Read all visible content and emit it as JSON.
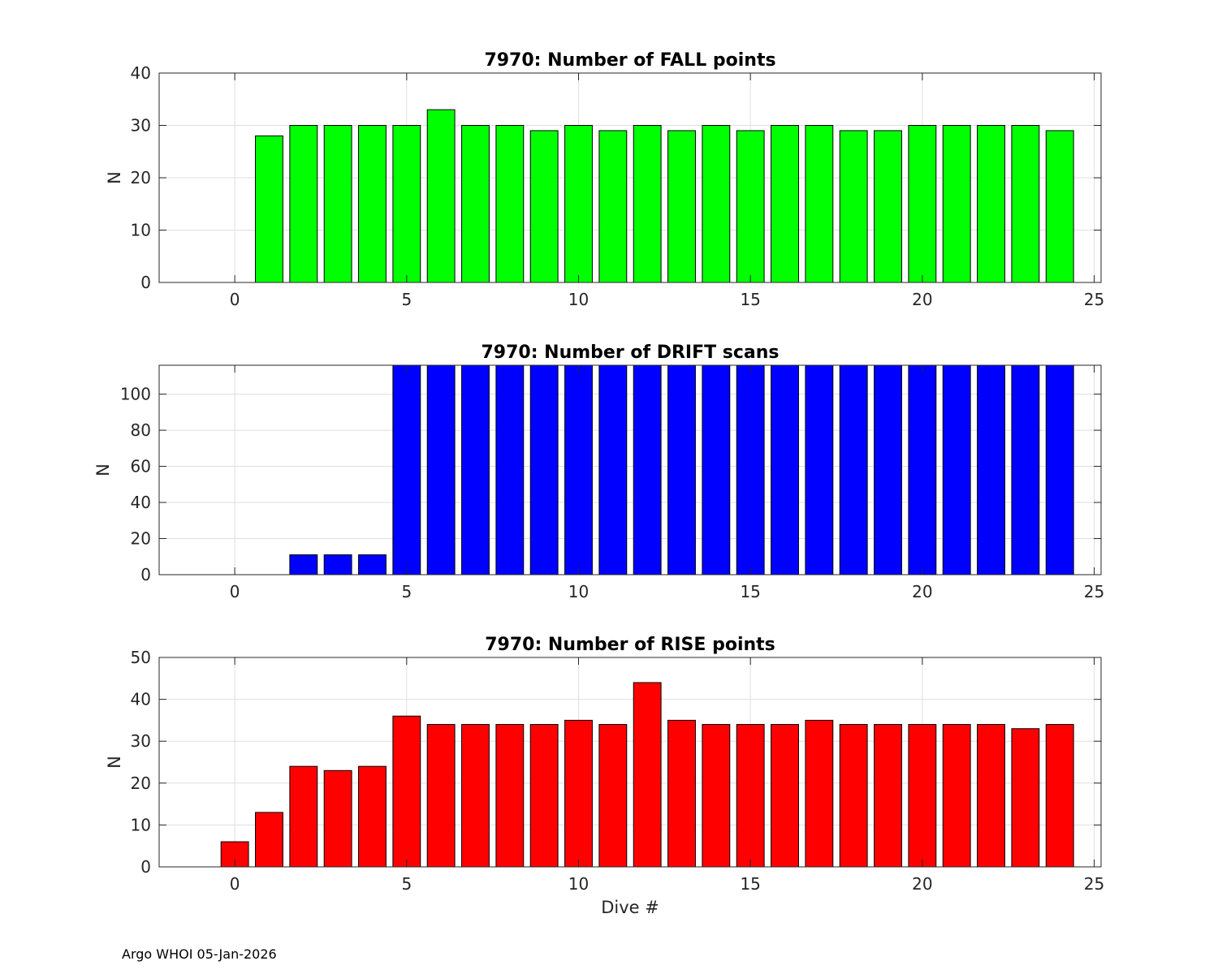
{
  "footer": "Argo WHOI 05-Jan-2026",
  "chart_data": [
    {
      "type": "bar",
      "title": "7970: Number of FALL points",
      "xlabel": "",
      "ylabel": "N",
      "color": "#00ff00",
      "xlim": [
        -2.2,
        25.2
      ],
      "ylim": [
        0,
        40
      ],
      "xticks": [
        0,
        5,
        10,
        15,
        20,
        25
      ],
      "yticks": [
        0,
        10,
        20,
        30,
        40
      ],
      "grid": true,
      "x": [
        1,
        2,
        3,
        4,
        5,
        6,
        7,
        8,
        9,
        10,
        11,
        12,
        13,
        14,
        15,
        16,
        17,
        18,
        19,
        20,
        21,
        22,
        23,
        24
      ],
      "values": [
        28,
        30,
        30,
        30,
        30,
        33,
        30,
        30,
        29,
        30,
        29,
        30,
        29,
        30,
        29,
        30,
        30,
        29,
        29,
        30,
        30,
        30,
        30,
        29
      ]
    },
    {
      "type": "bar",
      "title": "7970: Number of DRIFT scans",
      "xlabel": "",
      "ylabel": "N",
      "color": "#0000ff",
      "xlim": [
        -2.2,
        25.2
      ],
      "ylim": [
        0,
        116
      ],
      "xticks": [
        0,
        5,
        10,
        15,
        20,
        25
      ],
      "yticks": [
        0,
        20,
        40,
        60,
        80,
        100
      ],
      "grid": true,
      "x": [
        -1,
        0,
        1,
        2,
        3,
        4,
        5,
        6,
        7,
        8,
        9,
        10,
        11,
        12,
        13,
        14,
        15,
        16,
        17,
        18,
        19,
        20,
        21,
        22,
        23,
        24
      ],
      "values": [
        0,
        0,
        0,
        11,
        11,
        11,
        116,
        116,
        116,
        116,
        116,
        116,
        116,
        116,
        116,
        116,
        116,
        116,
        116,
        116,
        116,
        116,
        116,
        116,
        116,
        116
      ]
    },
    {
      "type": "bar",
      "title": "7970: Number of RISE points",
      "xlabel": "Dive #",
      "ylabel": "N",
      "color": "#ff0000",
      "xlim": [
        -2.2,
        25.2
      ],
      "ylim": [
        0,
        50
      ],
      "xticks": [
        0,
        5,
        10,
        15,
        20,
        25
      ],
      "yticks": [
        0,
        10,
        20,
        30,
        40,
        50
      ],
      "grid": true,
      "x": [
        0,
        1,
        2,
        3,
        4,
        5,
        6,
        7,
        8,
        9,
        10,
        11,
        12,
        13,
        14,
        15,
        16,
        17,
        18,
        19,
        20,
        21,
        22,
        23,
        24
      ],
      "values": [
        6,
        13,
        24,
        23,
        24,
        36,
        34,
        34,
        34,
        34,
        35,
        34,
        44,
        35,
        34,
        34,
        34,
        35,
        34,
        34,
        34,
        34,
        34,
        33,
        34
      ]
    }
  ]
}
